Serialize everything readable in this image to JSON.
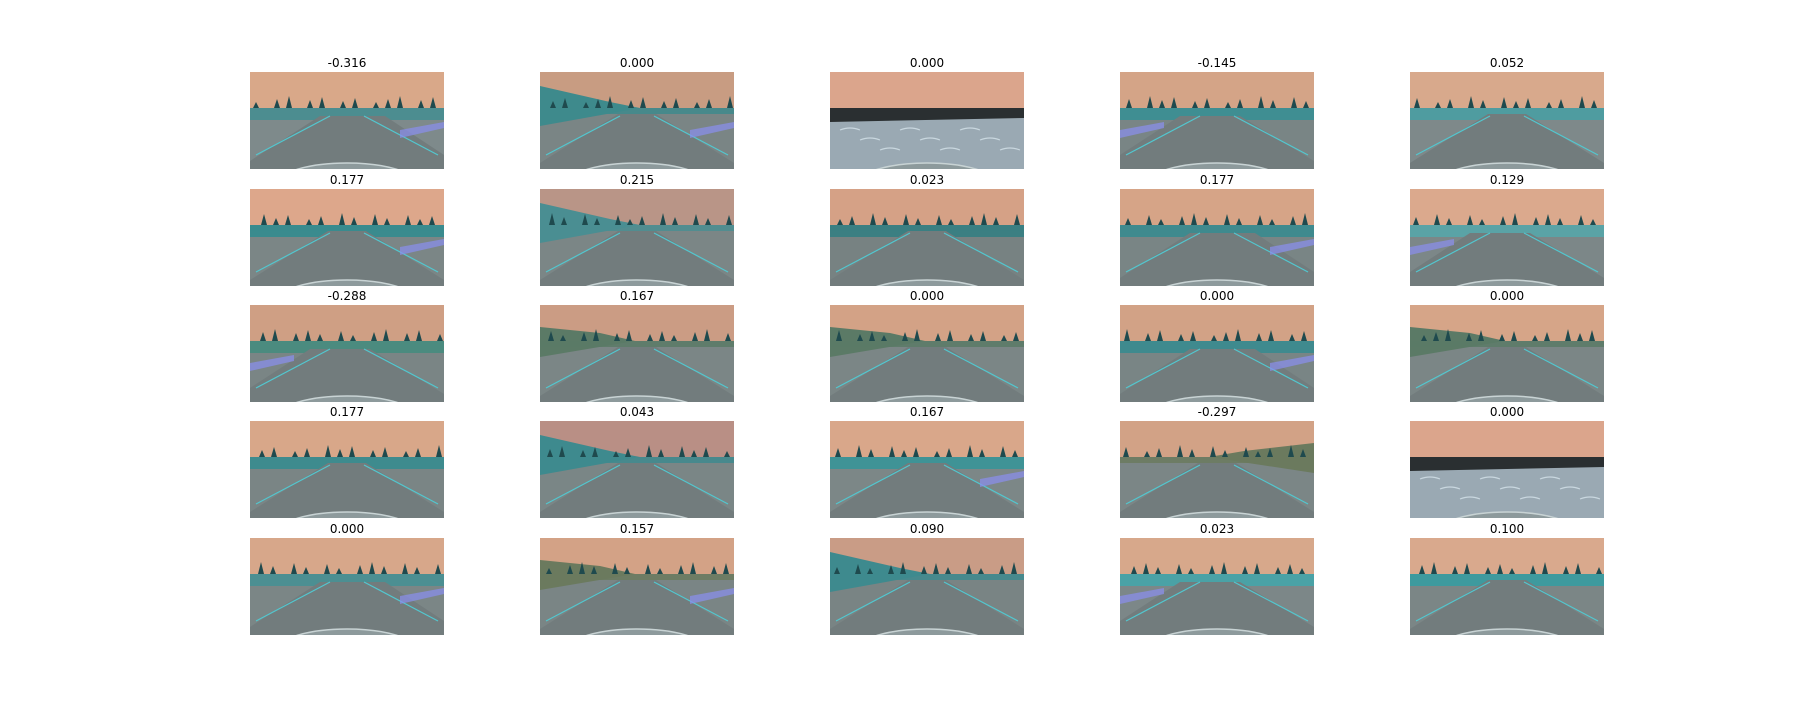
{
  "figure": {
    "images": [
      {
        "title": "-0.316",
        "sky": "#d9a889",
        "ground": "#7e8a8b",
        "veg": "#4c8d90",
        "variant": "curve-right"
      },
      {
        "title": "0.000",
        "sky": "#c89c82",
        "ground": "#7a8585",
        "veg": "#3e8a8c",
        "variant": "trees-left"
      },
      {
        "title": "0.000",
        "sky": "#dba58c",
        "ground": "#9aa9b3",
        "veg": "#2a2f31",
        "variant": "cobble"
      },
      {
        "title": "-0.145",
        "sky": "#d4a487",
        "ground": "#798585",
        "veg": "#3f8e92",
        "variant": "curve-left"
      },
      {
        "title": "0.052",
        "sky": "#d8a98c",
        "ground": "#7e898a",
        "veg": "#4f9ca0",
        "variant": "straight"
      },
      {
        "title": "0.177",
        "sky": "#dda78b",
        "ground": "#7b8686",
        "veg": "#3a8b8e",
        "variant": "straight"
      },
      {
        "title": "0.215",
        "sky": "#b99587",
        "ground": "#7b8686",
        "veg": "#4a8e92",
        "variant": "trees-left"
      },
      {
        "title": "0.023",
        "sky": "#d5a186",
        "ground": "#778282",
        "veg": "#3b7f82",
        "variant": "straight"
      },
      {
        "title": "0.177",
        "sky": "#d6a487",
        "ground": "#798585",
        "veg": "#3f8a8e",
        "variant": "curve-right"
      },
      {
        "title": "0.129",
        "sky": "#dba98d",
        "ground": "#7c8788",
        "veg": "#5aa3a6",
        "variant": "curve-left"
      },
      {
        "title": "-0.288",
        "sky": "#cf9f84",
        "ground": "#7a8585",
        "veg": "#4b8b7f",
        "variant": "curve-left"
      },
      {
        "title": "0.167",
        "sky": "#cb9c84",
        "ground": "#7b8686",
        "veg": "#5b7a66",
        "variant": "hill-left"
      },
      {
        "title": "0.000",
        "sky": "#d3a286",
        "ground": "#7b8686",
        "veg": "#5b7a66",
        "variant": "hill-left"
      },
      {
        "title": "0.000",
        "sky": "#d2a286",
        "ground": "#798585",
        "veg": "#3f8a8e",
        "variant": "curve-right"
      },
      {
        "title": "0.000",
        "sky": "#d6a588",
        "ground": "#7b8686",
        "veg": "#5b7a66",
        "variant": "hill-left"
      },
      {
        "title": "0.177",
        "sky": "#d8a789",
        "ground": "#7a8585",
        "veg": "#3e8b8e",
        "variant": "straight"
      },
      {
        "title": "0.043",
        "sky": "#b98f85",
        "ground": "#7a8686",
        "veg": "#3e8a8e",
        "variant": "trees-left"
      },
      {
        "title": "0.167",
        "sky": "#d9a78a",
        "ground": "#7c8787",
        "veg": "#3f9396",
        "variant": "straight"
      },
      {
        "title": "-0.297",
        "sky": "#d2a286",
        "ground": "#7b8686",
        "veg": "#6b7a5e",
        "variant": "hill-right"
      },
      {
        "title": "0.000",
        "sky": "#dba58c",
        "ground": "#9aa9b3",
        "veg": "#2a2f31",
        "variant": "cobble"
      },
      {
        "title": "0.000",
        "sky": "#d7a78a",
        "ground": "#7b8686",
        "veg": "#4c8f92",
        "variant": "curve-right"
      },
      {
        "title": "0.157",
        "sky": "#d3a286",
        "ground": "#7a8585",
        "veg": "#6b7a5e",
        "variant": "hill-left"
      },
      {
        "title": "0.090",
        "sky": "#c99c86",
        "ground": "#798484",
        "veg": "#3e8a8e",
        "variant": "trees-left"
      },
      {
        "title": "0.023",
        "sky": "#d7a88b",
        "ground": "#7c8788",
        "veg": "#4aa2a6",
        "variant": "curve-left"
      },
      {
        "title": "0.100",
        "sky": "#d9a98d",
        "ground": "#7b8686",
        "veg": "#3e9a9e",
        "variant": "straight"
      }
    ]
  }
}
